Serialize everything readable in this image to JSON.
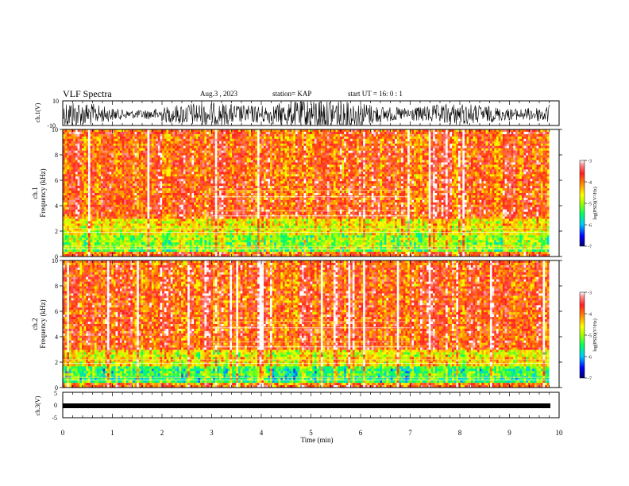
{
  "header": {
    "title": "VLF Spectra",
    "date": "Aug.3 , 2023",
    "station": "station= KAP",
    "start": "start UT = 16: 0 : 1"
  },
  "chart_data": [
    {
      "type": "line",
      "panel": "ch1-waveform",
      "ylabel": "ch.1(V)",
      "ylim": [
        -10,
        10
      ],
      "yticks": [
        "10",
        "-10"
      ],
      "xlim": [
        0,
        10
      ],
      "data_end_min": 9.8,
      "description_of_values": "dense broadband waveform oscillating roughly between -8 V and +10 V"
    },
    {
      "type": "heatmap",
      "panel": "ch1-spectrogram",
      "ylabel": "ch.1 Frequency (kHz)",
      "ylim": [
        0,
        10
      ],
      "yticks": [
        "0",
        "2",
        "4",
        "6",
        "8",
        "10"
      ],
      "xlim": [
        0,
        10
      ],
      "data_end_min": 9.8,
      "colorbar": {
        "label": "log(PSD)(V²/Hz)",
        "range": [
          -7,
          -3
        ],
        "ticks": [
          "-3",
          "-4",
          "-5",
          "-6",
          "-7"
        ]
      }
    },
    {
      "type": "heatmap",
      "panel": "ch2-spectrogram",
      "ylabel": "ch.2 Frequency (kHz)",
      "ylim": [
        0,
        10
      ],
      "yticks": [
        "0",
        "2",
        "4",
        "6",
        "8",
        "10"
      ],
      "xlim": [
        0,
        10
      ],
      "data_end_min": 9.8,
      "colorbar": {
        "label": "log(PSD)(V²/Hz)",
        "range": [
          -7,
          -3
        ],
        "ticks": [
          "-3",
          "-4",
          "-5",
          "-6",
          "-7"
        ]
      }
    },
    {
      "type": "line",
      "panel": "ch3-waveform",
      "ylabel": "ch.3(V)",
      "ylim": [
        -5,
        5
      ],
      "yticks": [
        "5",
        "0",
        "-5"
      ],
      "xlim": [
        0,
        10
      ],
      "data_end_min": 9.8,
      "constant_level": 0
    }
  ],
  "xaxis": {
    "label": "Time (min)",
    "ticks": [
      "0",
      "1",
      "2",
      "3",
      "4",
      "5",
      "6",
      "7",
      "8",
      "9",
      "10"
    ]
  },
  "colors": {
    "scale": [
      "#000070",
      "#0000ff",
      "#00c8ff",
      "#00ff60",
      "#a0ff00",
      "#ffff00",
      "#ff9000",
      "#ff2020",
      "#ff8080",
      "#ffffff"
    ]
  }
}
